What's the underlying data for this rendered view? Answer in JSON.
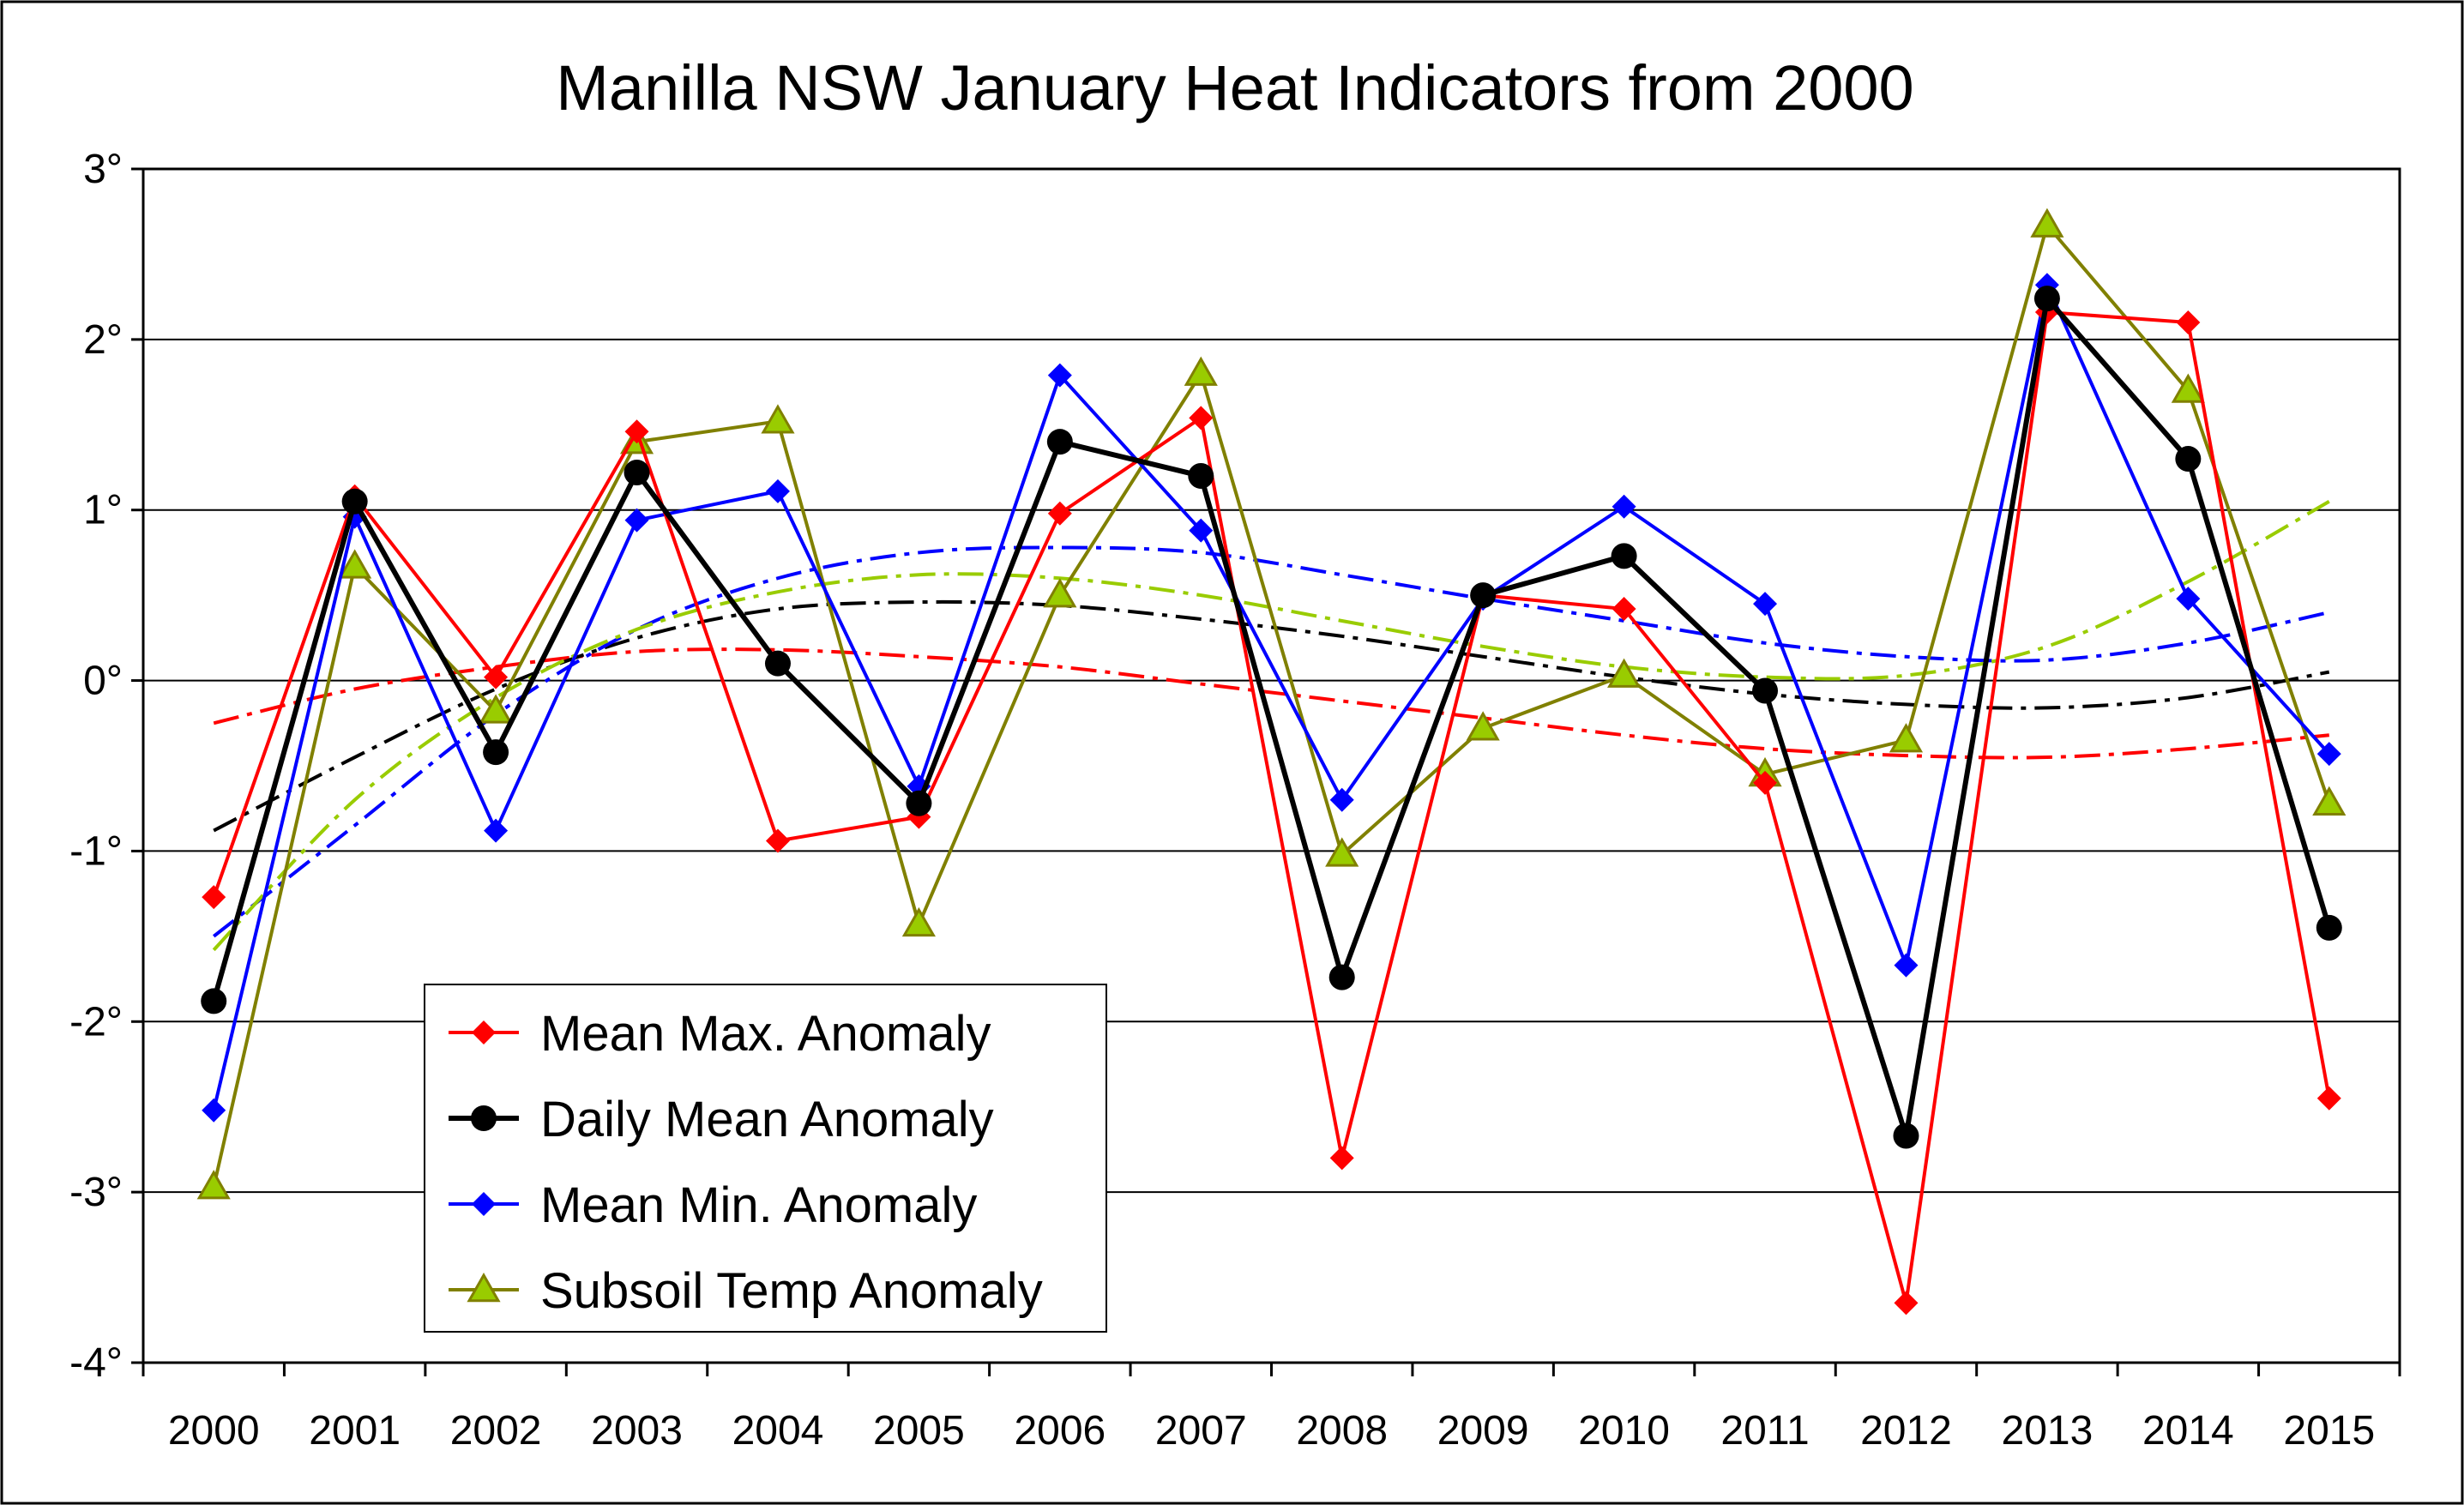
{
  "chart_data": {
    "type": "line",
    "title": "Manilla NSW January Heat Indicators from 2000",
    "xlabel": "",
    "ylabel": "",
    "categories": [
      "2000",
      "2001",
      "2002",
      "2003",
      "2004",
      "2005",
      "2006",
      "2007",
      "2008",
      "2009",
      "2010",
      "2011",
      "2012",
      "2013",
      "2014",
      "2015"
    ],
    "y_ticks": [
      "3°",
      "2°",
      "1°",
      "0°",
      "-1°",
      "-2°",
      "-3°",
      "-4°"
    ],
    "ylim": [
      -4,
      3
    ],
    "grid": true,
    "legend_position": "bottom-left",
    "series": [
      {
        "name": "Mean Max. Anomaly",
        "color": "#ff0000",
        "marker": "diamond",
        "values": [
          -1.27,
          1.08,
          0.02,
          1.46,
          -0.94,
          -0.8,
          0.98,
          1.54,
          -2.8,
          0.5,
          0.42,
          -0.6,
          -3.65,
          2.16,
          2.1,
          -2.45
        ]
      },
      {
        "name": "Daily Mean Anomaly",
        "color": "#000000",
        "marker": "circle",
        "values": [
          -1.88,
          1.05,
          -0.42,
          1.22,
          0.1,
          -0.72,
          1.4,
          1.2,
          -1.74,
          0.5,
          0.73,
          -0.06,
          -2.67,
          2.24,
          1.3,
          -1.45
        ]
      },
      {
        "name": "Mean Min. Anomaly",
        "color": "#0000ff",
        "marker": "diamond",
        "values": [
          -2.52,
          0.96,
          -0.88,
          0.94,
          1.11,
          -0.62,
          1.79,
          0.88,
          -0.7,
          0.48,
          1.02,
          0.45,
          -1.67,
          2.32,
          0.48,
          -0.43
        ]
      },
      {
        "name": "Subsoil Temp Anomaly",
        "color": "#808000",
        "fill": "#99cc00",
        "marker": "triangle",
        "values": [
          -2.97,
          0.67,
          -0.18,
          1.4,
          1.52,
          -1.43,
          0.5,
          1.8,
          -1.02,
          -0.28,
          0.03,
          -0.55,
          -0.35,
          2.67,
          1.7,
          -0.72
        ]
      }
    ],
    "trends": [
      {
        "color": "#ff0000",
        "points": [
          [
            2000,
            -0.25
          ],
          [
            2001,
            -0.05
          ],
          [
            2002,
            0.08
          ],
          [
            2003,
            0.17
          ],
          [
            2004,
            0.18
          ],
          [
            2005,
            0.14
          ],
          [
            2006,
            0.08
          ],
          [
            2007,
            -0.02
          ],
          [
            2008,
            -0.12
          ],
          [
            2009,
            -0.22
          ],
          [
            2010,
            -0.32
          ],
          [
            2011,
            -0.4
          ],
          [
            2012,
            -0.44
          ],
          [
            2013,
            -0.45
          ],
          [
            2014,
            -0.4
          ],
          [
            2015,
            -0.32
          ]
        ]
      },
      {
        "color": "#000000",
        "points": [
          [
            2000,
            -0.88
          ],
          [
            2001,
            -0.45
          ],
          [
            2002,
            -0.05
          ],
          [
            2003,
            0.25
          ],
          [
            2004,
            0.42
          ],
          [
            2005,
            0.46
          ],
          [
            2006,
            0.44
          ],
          [
            2007,
            0.36
          ],
          [
            2008,
            0.26
          ],
          [
            2009,
            0.14
          ],
          [
            2010,
            0.02
          ],
          [
            2011,
            -0.08
          ],
          [
            2012,
            -0.14
          ],
          [
            2013,
            -0.16
          ],
          [
            2014,
            -0.1
          ],
          [
            2015,
            0.05
          ]
        ]
      },
      {
        "color": "#0000ff",
        "points": [
          [
            2000,
            -1.5
          ],
          [
            2001,
            -0.85
          ],
          [
            2002,
            -0.2
          ],
          [
            2003,
            0.3
          ],
          [
            2004,
            0.6
          ],
          [
            2005,
            0.75
          ],
          [
            2006,
            0.78
          ],
          [
            2007,
            0.75
          ],
          [
            2008,
            0.62
          ],
          [
            2009,
            0.48
          ],
          [
            2010,
            0.35
          ],
          [
            2011,
            0.22
          ],
          [
            2012,
            0.14
          ],
          [
            2013,
            0.12
          ],
          [
            2014,
            0.22
          ],
          [
            2015,
            0.4
          ]
        ]
      },
      {
        "color": "#99cc00",
        "points": [
          [
            2000,
            -1.58
          ],
          [
            2001,
            -0.7
          ],
          [
            2002,
            -0.1
          ],
          [
            2003,
            0.3
          ],
          [
            2004,
            0.52
          ],
          [
            2005,
            0.62
          ],
          [
            2006,
            0.6
          ],
          [
            2007,
            0.5
          ],
          [
            2008,
            0.35
          ],
          [
            2009,
            0.2
          ],
          [
            2010,
            0.08
          ],
          [
            2011,
            0.02
          ],
          [
            2012,
            0.03
          ],
          [
            2013,
            0.2
          ],
          [
            2014,
            0.58
          ],
          [
            2015,
            1.05
          ]
        ]
      }
    ]
  }
}
